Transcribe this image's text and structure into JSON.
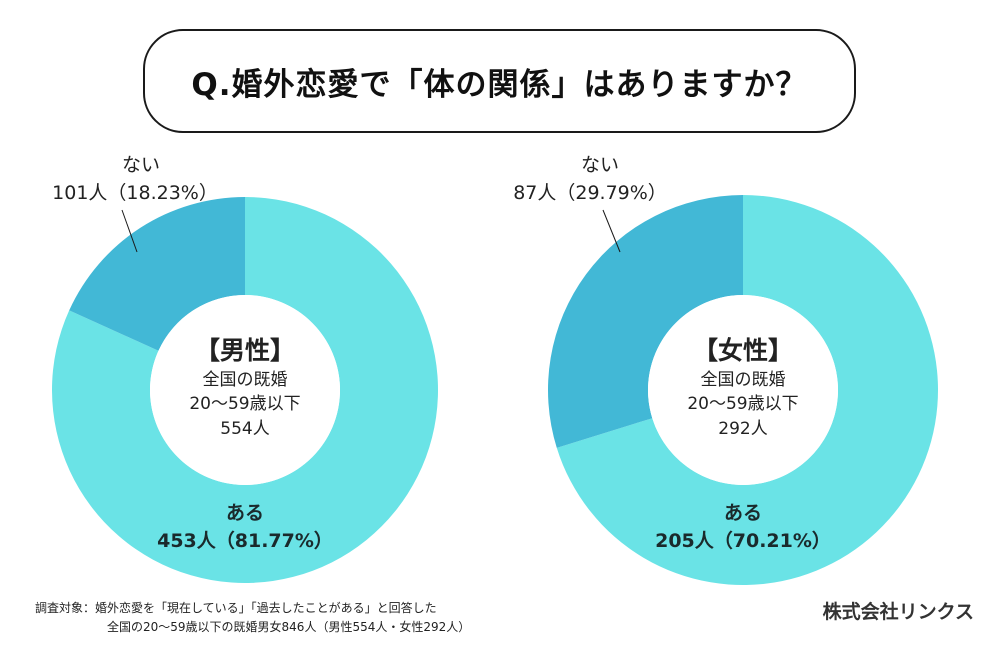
{
  "title": "Q.婚外恋愛で「体の関係」はありますか？",
  "colors": {
    "yes": "#6ae3e6",
    "no": "#42b8d6",
    "hole": "#ffffff",
    "leader_line": "#1a1a1a"
  },
  "chart_data": [
    {
      "type": "pie",
      "variant": "donut",
      "title": "【男性】",
      "center_text": [
        "全国の既婚",
        "20〜59歳以下",
        "554人"
      ],
      "total": 554,
      "start": "top, clockwise",
      "slices": [
        {
          "label": "ある",
          "count": 453,
          "percent": 81.77,
          "count_text": "453人（81.77%）",
          "color": "#6ae3e6"
        },
        {
          "label": "ない",
          "count": 101,
          "percent": 18.23,
          "count_text": "101人（18.23%）",
          "color": "#42b8d6"
        }
      ]
    },
    {
      "type": "pie",
      "variant": "donut",
      "title": "【女性】",
      "center_text": [
        "全国の既婚",
        "20〜59歳以下",
        "292人"
      ],
      "total": 292,
      "start": "top, clockwise",
      "slices": [
        {
          "label": "ある",
          "count": 205,
          "percent": 70.21,
          "count_text": "205人（70.21%）",
          "color": "#6ae3e6"
        },
        {
          "label": "ない",
          "count": 87,
          "percent": 29.79,
          "count_text": "87人（29.79%）",
          "color": "#42b8d6"
        }
      ]
    }
  ],
  "footnote": {
    "line1": "調査対象：婚外恋愛を「現在している」「過去したことがある」と回答した",
    "line2": "全国の20〜59歳以下の既婚男女846人（男性554人・女性292人）"
  },
  "company": "株式会社リンクス"
}
